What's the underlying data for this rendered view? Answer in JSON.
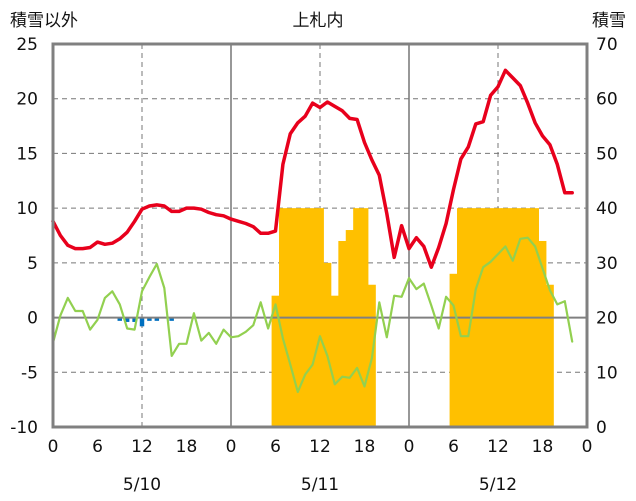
{
  "chart_data": {
    "type": "line",
    "title": "上札内",
    "left_axis_label": "積雪以外",
    "right_axis_label": "積雪",
    "left_ylim": [
      -10,
      25
    ],
    "right_ylim": [
      0,
      70
    ],
    "left_yticks": [
      "25",
      "20",
      "15",
      "10",
      "5",
      "0",
      "-5",
      "-10"
    ],
    "right_yticks": [
      "70",
      "60",
      "50",
      "40",
      "30",
      "20",
      "10",
      "0"
    ],
    "x_range": [
      0,
      72
    ],
    "x_ticks": [
      {
        "x": 0,
        "label": "0"
      },
      {
        "x": 6,
        "label": "6"
      },
      {
        "x": 12,
        "label": "12"
      },
      {
        "x": 18,
        "label": "18"
      },
      {
        "x": 24,
        "label": "0"
      },
      {
        "x": 30,
        "label": "6"
      },
      {
        "x": 36,
        "label": "12"
      },
      {
        "x": 42,
        "label": "18"
      },
      {
        "x": 48,
        "label": "0"
      },
      {
        "x": 54,
        "label": "6"
      },
      {
        "x": 60,
        "label": "12"
      },
      {
        "x": 66,
        "label": "18"
      },
      {
        "x": 72,
        "label": "0"
      }
    ],
    "date_labels": [
      {
        "x": 12,
        "label": "5/10"
      },
      {
        "x": 36,
        "label": "5/11"
      },
      {
        "x": 60,
        "label": "5/12"
      }
    ],
    "colors": {
      "temperature": "#e8001c",
      "other": "#92d050",
      "snow_depth": "#ffc000",
      "precip": "#0070c0",
      "grid": "#777777",
      "frame": "#808080"
    },
    "series": [
      {
        "name": "temperature",
        "axis": "left",
        "x": [
          0,
          1,
          2,
          3,
          4,
          5,
          6,
          7,
          8,
          9,
          10,
          11,
          12,
          13,
          14,
          15,
          16,
          17,
          18,
          19,
          20,
          21,
          22,
          23,
          24,
          25,
          26,
          27,
          28,
          29,
          30,
          31,
          32,
          33,
          34,
          35,
          36,
          37,
          38,
          39,
          40,
          41,
          42,
          43,
          44,
          45,
          46,
          47,
          48,
          49,
          50,
          51,
          52,
          53,
          54,
          55,
          56,
          57,
          58,
          59,
          60,
          61,
          62,
          63,
          64,
          65,
          66,
          67,
          68,
          69,
          70
        ],
        "values": [
          8.8,
          7.5,
          6.6,
          6.3,
          6.3,
          6.4,
          6.9,
          6.7,
          6.8,
          7.2,
          7.8,
          8.8,
          9.9,
          10.2,
          10.3,
          10.2,
          9.7,
          9.7,
          10.0,
          10.0,
          9.9,
          9.6,
          9.4,
          9.3,
          9.0,
          8.8,
          8.6,
          8.3,
          7.7,
          7.7,
          7.9,
          14.0,
          16.8,
          17.8,
          18.4,
          19.6,
          19.2,
          19.7,
          19.3,
          18.9,
          18.2,
          18.1,
          16.0,
          14.4,
          13.0,
          9.5,
          5.5,
          8.4,
          6.3,
          7.3,
          6.5,
          4.6,
          6.4,
          8.6,
          11.7,
          14.5,
          15.6,
          17.7,
          17.9,
          20.3,
          21.1,
          22.6,
          21.9,
          21.2,
          19.6,
          17.8,
          16.6,
          15.8,
          14.0,
          11.4,
          11.4
        ]
      },
      {
        "name": "other",
        "axis": "left",
        "x": [
          0,
          1,
          2,
          3,
          4,
          5,
          6,
          7,
          8,
          9,
          10,
          11,
          12,
          13,
          14,
          15,
          16,
          17,
          18,
          19,
          20,
          21,
          22,
          23,
          24,
          25,
          26,
          27,
          28,
          29,
          30,
          31,
          32,
          33,
          34,
          35,
          36,
          37,
          38,
          39,
          40,
          41,
          42,
          43,
          44,
          45,
          46,
          47,
          48,
          49,
          50,
          51,
          52,
          53,
          54,
          55,
          56,
          57,
          58,
          59,
          60,
          61,
          62,
          63,
          64,
          65,
          66,
          67,
          68,
          69,
          70
        ],
        "values": [
          -2.3,
          0.2,
          1.8,
          0.6,
          0.6,
          -1.1,
          -0.2,
          1.8,
          2.4,
          1.2,
          -1.0,
          -1.1,
          2.4,
          3.7,
          4.9,
          2.7,
          -3.5,
          -2.4,
          -2.4,
          0.4,
          -2.1,
          -1.4,
          -2.4,
          -1.1,
          -1.8,
          -1.7,
          -1.3,
          -0.7,
          1.4,
          -1.0,
          1.2,
          -1.9,
          -4.3,
          -6.8,
          -5.2,
          -4.3,
          -1.7,
          -3.5,
          -6.1,
          -5.4,
          -5.5,
          -4.6,
          -6.3,
          -3.7,
          1.4,
          -1.8,
          2.0,
          1.9,
          3.6,
          2.6,
          3.1,
          1.1,
          -1.0,
          1.9,
          1.1,
          -1.7,
          -1.7,
          2.6,
          4.6,
          5.1,
          5.8,
          6.5,
          5.2,
          7.2,
          7.3,
          6.5,
          4.5,
          2.5,
          1.2,
          1.5,
          -2.2
        ]
      },
      {
        "name": "snow_depth",
        "axis": "right",
        "type": "bar",
        "x": [
          30,
          31,
          32,
          33,
          34,
          35,
          36,
          37,
          38,
          39,
          40,
          41,
          42,
          43,
          44,
          45,
          46,
          47,
          48,
          49,
          50,
          51,
          52,
          53,
          54,
          55,
          56,
          57,
          58,
          59,
          60,
          61,
          62,
          63,
          64,
          65,
          66,
          67,
          68,
          69
        ],
        "values": [
          24,
          40,
          40,
          40,
          40,
          40,
          40,
          30,
          24,
          34,
          36,
          40,
          40,
          26,
          0,
          0,
          0,
          0,
          0,
          0,
          0,
          0,
          0,
          0,
          28,
          40,
          40,
          40,
          40,
          40,
          40,
          40,
          40,
          40,
          40,
          40,
          34,
          26,
          0,
          0
        ]
      },
      {
        "name": "precip",
        "axis": "left",
        "type": "bar",
        "x": [
          9,
          10,
          11,
          12,
          13,
          14,
          15,
          16
        ],
        "values": [
          -0.3,
          -0.4,
          -0.4,
          -0.8,
          -0.3,
          -0.3,
          0,
          -0.3
        ]
      }
    ]
  }
}
